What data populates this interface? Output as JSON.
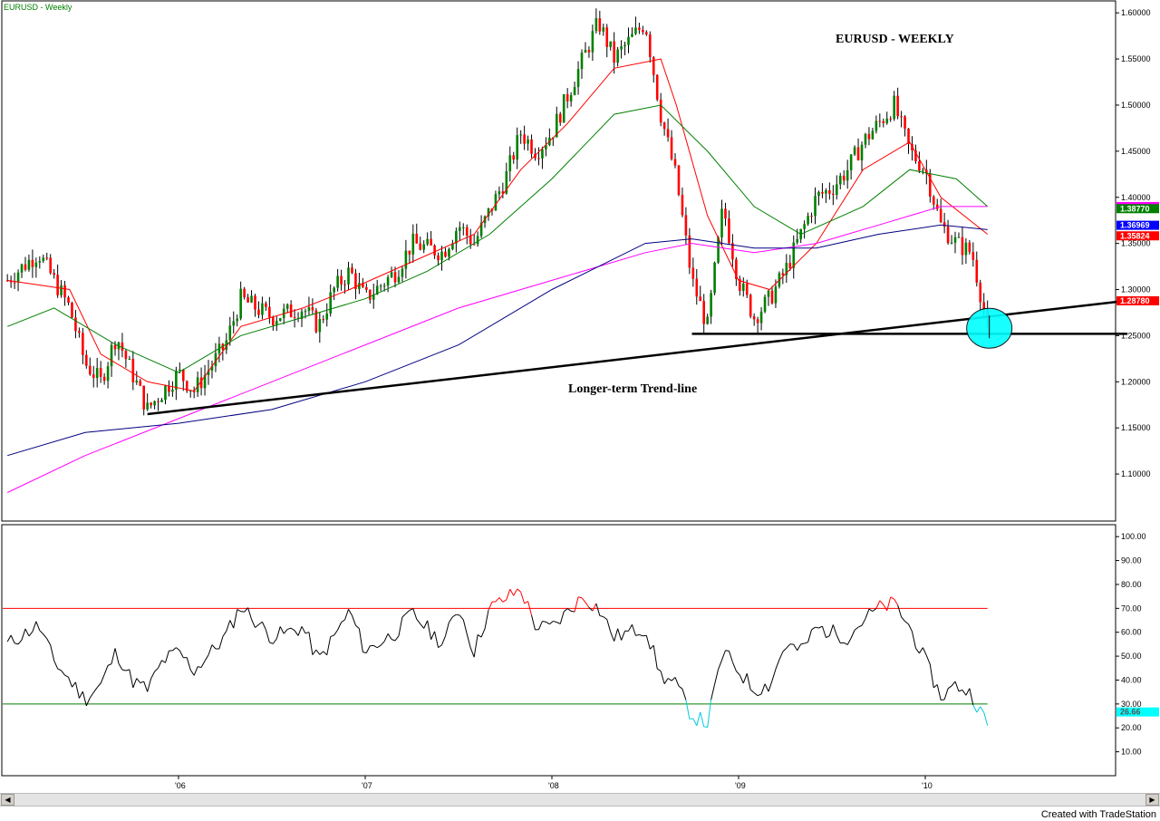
{
  "corner_label": "EURUSD - Weekly",
  "credit": "Created with TradeStation",
  "icons": {
    "left": "scroll-left-arrow-icon",
    "right": "scroll-right-arrow-icon"
  },
  "chart_data": [
    {
      "type": "candlestick",
      "title": "EURUSD - WEEKLY",
      "annotation": "Longer-term Trend-line",
      "x_labels": [
        {
          "label": "'06",
          "date": "2006-01"
        },
        {
          "label": "'07",
          "date": "2007-01"
        },
        {
          "label": "'08",
          "date": "2008-01"
        },
        {
          "label": "'09",
          "date": "2009-01"
        },
        {
          "label": "'10",
          "date": "2010-01"
        }
      ],
      "xlim": [
        "2005-02",
        "2011-03"
      ],
      "ylim": [
        1.05,
        1.61
      ],
      "y_ticks": [
        "1.60000",
        "1.55000",
        "1.50000",
        "1.45000",
        "1.40000",
        "1.35000",
        "1.30000",
        "1.25000",
        "1.20000",
        "1.15000",
        "1.10000"
      ],
      "colors": {
        "up": "#008000",
        "down": "#ff0000"
      },
      "price_path": [
        {
          "date": "2005-02",
          "value": 1.31
        },
        {
          "date": "2005-04",
          "value": 1.34
        },
        {
          "date": "2005-06",
          "value": 1.28
        },
        {
          "date": "2005-07",
          "value": 1.22
        },
        {
          "date": "2005-08",
          "value": 1.2
        },
        {
          "date": "2005-09",
          "value": 1.25
        },
        {
          "date": "2005-10",
          "value": 1.21
        },
        {
          "date": "2005-11",
          "value": 1.17
        },
        {
          "date": "2005-12",
          "value": 1.19
        },
        {
          "date": "2006-01",
          "value": 1.21
        },
        {
          "date": "2006-02",
          "value": 1.19
        },
        {
          "date": "2006-04",
          "value": 1.24
        },
        {
          "date": "2006-05",
          "value": 1.29
        },
        {
          "date": "2006-07",
          "value": 1.27
        },
        {
          "date": "2006-09",
          "value": 1.28
        },
        {
          "date": "2006-10",
          "value": 1.26
        },
        {
          "date": "2006-11",
          "value": 1.3
        },
        {
          "date": "2006-12",
          "value": 1.32
        },
        {
          "date": "2007-01",
          "value": 1.29
        },
        {
          "date": "2007-03",
          "value": 1.32
        },
        {
          "date": "2007-04",
          "value": 1.35
        },
        {
          "date": "2007-06",
          "value": 1.34
        },
        {
          "date": "2007-07",
          "value": 1.37
        },
        {
          "date": "2007-08",
          "value": 1.35
        },
        {
          "date": "2007-10",
          "value": 1.42
        },
        {
          "date": "2007-11",
          "value": 1.47
        },
        {
          "date": "2007-12",
          "value": 1.45
        },
        {
          "date": "2008-01",
          "value": 1.47
        },
        {
          "date": "2008-03",
          "value": 1.55
        },
        {
          "date": "2008-04",
          "value": 1.59
        },
        {
          "date": "2008-05",
          "value": 1.55
        },
        {
          "date": "2008-06",
          "value": 1.57
        },
        {
          "date": "2008-07",
          "value": 1.59
        },
        {
          "date": "2008-08",
          "value": 1.49
        },
        {
          "date": "2008-09",
          "value": 1.42
        },
        {
          "date": "2008-10",
          "value": 1.31
        },
        {
          "date": "2008-11",
          "value": 1.26
        },
        {
          "date": "2008-12",
          "value": 1.39
        },
        {
          "date": "2009-01",
          "value": 1.31
        },
        {
          "date": "2009-02",
          "value": 1.27
        },
        {
          "date": "2009-03",
          "value": 1.29
        },
        {
          "date": "2009-04",
          "value": 1.32
        },
        {
          "date": "2009-05",
          "value": 1.36
        },
        {
          "date": "2009-06",
          "value": 1.4
        },
        {
          "date": "2009-07",
          "value": 1.41
        },
        {
          "date": "2009-08",
          "value": 1.43
        },
        {
          "date": "2009-09",
          "value": 1.46
        },
        {
          "date": "2009-10",
          "value": 1.48
        },
        {
          "date": "2009-11",
          "value": 1.5
        },
        {
          "date": "2009-12",
          "value": 1.45
        },
        {
          "date": "2010-01",
          "value": 1.43
        },
        {
          "date": "2010-02",
          "value": 1.37
        },
        {
          "date": "2010-03",
          "value": 1.35
        },
        {
          "date": "2010-04",
          "value": 1.34
        },
        {
          "date": "2010-05",
          "value": 1.26
        },
        {
          "date": "2010-05",
          "value": 1.29
        }
      ],
      "series": [
        {
          "color": "#ff0000",
          "points": [
            {
              "date": "2005-02",
              "value": 1.31
            },
            {
              "date": "2005-06",
              "value": 1.3
            },
            {
              "date": "2005-08",
              "value": 1.23
            },
            {
              "date": "2005-11",
              "value": 1.2
            },
            {
              "date": "2006-02",
              "value": 1.19
            },
            {
              "date": "2006-05",
              "value": 1.26
            },
            {
              "date": "2006-09",
              "value": 1.28
            },
            {
              "date": "2006-12",
              "value": 1.3
            },
            {
              "date": "2007-04",
              "value": 1.33
            },
            {
              "date": "2007-08",
              "value": 1.36
            },
            {
              "date": "2007-11",
              "value": 1.43
            },
            {
              "date": "2008-02",
              "value": 1.48
            },
            {
              "date": "2008-05",
              "value": 1.54
            },
            {
              "date": "2008-08",
              "value": 1.55
            },
            {
              "date": "2008-09",
              "value": 1.5
            },
            {
              "date": "2008-11",
              "value": 1.38
            },
            {
              "date": "2009-01",
              "value": 1.31
            },
            {
              "date": "2009-03",
              "value": 1.3
            },
            {
              "date": "2009-06",
              "value": 1.35
            },
            {
              "date": "2009-09",
              "value": 1.43
            },
            {
              "date": "2009-12",
              "value": 1.46
            },
            {
              "date": "2010-02",
              "value": 1.4
            },
            {
              "date": "2010-05",
              "value": 1.36
            }
          ]
        },
        {
          "color": "#008000",
          "points": [
            {
              "date": "2005-02",
              "value": 1.26
            },
            {
              "date": "2005-05",
              "value": 1.28
            },
            {
              "date": "2005-09",
              "value": 1.24
            },
            {
              "date": "2006-01",
              "value": 1.21
            },
            {
              "date": "2006-05",
              "value": 1.25
            },
            {
              "date": "2006-09",
              "value": 1.27
            },
            {
              "date": "2007-01",
              "value": 1.29
            },
            {
              "date": "2007-05",
              "value": 1.32
            },
            {
              "date": "2007-09",
              "value": 1.36
            },
            {
              "date": "2008-01",
              "value": 1.42
            },
            {
              "date": "2008-05",
              "value": 1.49
            },
            {
              "date": "2008-08",
              "value": 1.5
            },
            {
              "date": "2008-11",
              "value": 1.45
            },
            {
              "date": "2009-02",
              "value": 1.39
            },
            {
              "date": "2009-05",
              "value": 1.36
            },
            {
              "date": "2009-09",
              "value": 1.39
            },
            {
              "date": "2009-12",
              "value": 1.43
            },
            {
              "date": "2010-03",
              "value": 1.42
            },
            {
              "date": "2010-05",
              "value": 1.39
            }
          ]
        },
        {
          "color": "#ff00ff",
          "points": [
            {
              "date": "2005-02",
              "value": 1.08
            },
            {
              "date": "2005-07",
              "value": 1.12
            },
            {
              "date": "2006-01",
              "value": 1.16
            },
            {
              "date": "2006-07",
              "value": 1.2
            },
            {
              "date": "2007-01",
              "value": 1.24
            },
            {
              "date": "2007-07",
              "value": 1.28
            },
            {
              "date": "2008-01",
              "value": 1.31
            },
            {
              "date": "2008-07",
              "value": 1.34
            },
            {
              "date": "2008-10",
              "value": 1.35
            },
            {
              "date": "2009-02",
              "value": 1.34
            },
            {
              "date": "2009-06",
              "value": 1.35
            },
            {
              "date": "2009-10",
              "value": 1.37
            },
            {
              "date": "2010-02",
              "value": 1.39
            },
            {
              "date": "2010-05",
              "value": 1.39
            }
          ]
        },
        {
          "color": "#000080",
          "points": [
            {
              "date": "2005-02",
              "value": 1.12
            },
            {
              "date": "2005-07",
              "value": 1.145
            },
            {
              "date": "2006-01",
              "value": 1.155
            },
            {
              "date": "2006-07",
              "value": 1.17
            },
            {
              "date": "2007-01",
              "value": 1.2
            },
            {
              "date": "2007-07",
              "value": 1.24
            },
            {
              "date": "2008-01",
              "value": 1.3
            },
            {
              "date": "2008-07",
              "value": 1.35
            },
            {
              "date": "2008-10",
              "value": 1.355
            },
            {
              "date": "2009-02",
              "value": 1.345
            },
            {
              "date": "2009-06",
              "value": 1.345
            },
            {
              "date": "2009-10",
              "value": 1.36
            },
            {
              "date": "2010-02",
              "value": 1.37
            },
            {
              "date": "2010-05",
              "value": 1.365
            }
          ]
        }
      ],
      "trendlines": [
        {
          "color": "#000000",
          "from": {
            "date": "2005-11",
            "value": 1.165
          },
          "to": {
            "date": "2011-03",
            "value": 1.29
          }
        },
        {
          "color": "#000000",
          "from": {
            "date": "2008-10",
            "value": 1.252
          },
          "to": {
            "date": "2011-02",
            "value": 1.252
          }
        }
      ],
      "highlight": {
        "date": "2010-05",
        "value": 1.262,
        "color": "#00ffff"
      },
      "price_badges": [
        {
          "value": 1.39,
          "label": "",
          "color": "#ff00ff"
        },
        {
          "value": 1.3877,
          "label": "1.38770",
          "color": "#008000"
        },
        {
          "value": 1.36969,
          "label": "1.36969",
          "color": "#0000ff"
        },
        {
          "value": 1.35824,
          "label": "1.35824",
          "color": "#ff0000"
        },
        {
          "value": 1.2878,
          "label": "1.28780",
          "color": "#ff0000"
        }
      ]
    },
    {
      "type": "line",
      "ylim": [
        0,
        105
      ],
      "y_ticks": [
        "100.00",
        "90.00",
        "80.00",
        "70.00",
        "60.00",
        "50.00",
        "40.00",
        "30.00",
        "20.00",
        "10.00"
      ],
      "overbought": {
        "value": 70,
        "color": "#ff0000"
      },
      "oversold": {
        "value": 30,
        "color": "#008000"
      },
      "colors": {
        "normal": "#000000",
        "overbought": "#ff0000",
        "oversold": "#00ccdd"
      },
      "series": [
        {
          "values": [
            {
              "date": "2005-02",
              "value": 55
            },
            {
              "date": "2005-04",
              "value": 63
            },
            {
              "date": "2005-05",
              "value": 48
            },
            {
              "date": "2005-06",
              "value": 40
            },
            {
              "date": "2005-07",
              "value": 32
            },
            {
              "date": "2005-08",
              "value": 38
            },
            {
              "date": "2005-09",
              "value": 52
            },
            {
              "date": "2005-10",
              "value": 40
            },
            {
              "date": "2005-11",
              "value": 36
            },
            {
              "date": "2005-12",
              "value": 48
            },
            {
              "date": "2006-01",
              "value": 52
            },
            {
              "date": "2006-02",
              "value": 44
            },
            {
              "date": "2006-04",
              "value": 58
            },
            {
              "date": "2006-05",
              "value": 71
            },
            {
              "date": "2006-07",
              "value": 58
            },
            {
              "date": "2006-09",
              "value": 62
            },
            {
              "date": "2006-10",
              "value": 48
            },
            {
              "date": "2006-11",
              "value": 58
            },
            {
              "date": "2006-12",
              "value": 69
            },
            {
              "date": "2007-01",
              "value": 52
            },
            {
              "date": "2007-03",
              "value": 60
            },
            {
              "date": "2007-04",
              "value": 68
            },
            {
              "date": "2007-06",
              "value": 55
            },
            {
              "date": "2007-07",
              "value": 71
            },
            {
              "date": "2007-08",
              "value": 52
            },
            {
              "date": "2007-09",
              "value": 70
            },
            {
              "date": "2007-11",
              "value": 78
            },
            {
              "date": "2007-12",
              "value": 62
            },
            {
              "date": "2008-01",
              "value": 62
            },
            {
              "date": "2008-03",
              "value": 75
            },
            {
              "date": "2008-04",
              "value": 70
            },
            {
              "date": "2008-05",
              "value": 58
            },
            {
              "date": "2008-07",
              "value": 62
            },
            {
              "date": "2008-08",
              "value": 42
            },
            {
              "date": "2008-09",
              "value": 38
            },
            {
              "date": "2008-10",
              "value": 25
            },
            {
              "date": "2008-11",
              "value": 22
            },
            {
              "date": "2008-12",
              "value": 52
            },
            {
              "date": "2009-01",
              "value": 44
            },
            {
              "date": "2009-02",
              "value": 36
            },
            {
              "date": "2009-03",
              "value": 38
            },
            {
              "date": "2009-04",
              "value": 55
            },
            {
              "date": "2009-05",
              "value": 52
            },
            {
              "date": "2009-06",
              "value": 62
            },
            {
              "date": "2009-08",
              "value": 58
            },
            {
              "date": "2009-09",
              "value": 65
            },
            {
              "date": "2009-10",
              "value": 70
            },
            {
              "date": "2009-11",
              "value": 72
            },
            {
              "date": "2009-12",
              "value": 62
            },
            {
              "date": "2010-01",
              "value": 48
            },
            {
              "date": "2010-02",
              "value": 33
            },
            {
              "date": "2010-03",
              "value": 38
            },
            {
              "date": "2010-04",
              "value": 34
            },
            {
              "date": "2010-05",
              "value": 21
            },
            {
              "date": "2010-05",
              "value": 26.66
            }
          ]
        }
      ],
      "badges": [
        {
          "value": 26.66,
          "label": "26.66",
          "color": "#00ffff"
        }
      ]
    }
  ]
}
